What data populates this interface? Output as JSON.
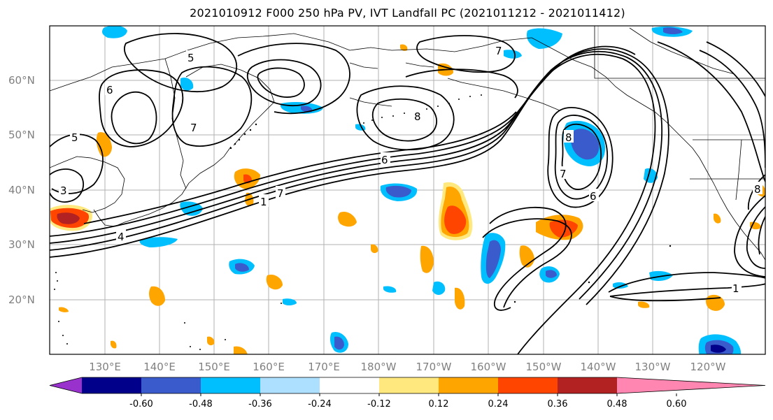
{
  "title": "2021010912 F000 250 hPa PV, IVT Landfall PC (2021011212 - 2021011412)",
  "lat_labels": [
    "60°N",
    "50°N",
    "40°N",
    "30°N",
    "20°N"
  ],
  "lon_labels": [
    "130°E",
    "140°E",
    "150°E",
    "160°E",
    "170°E",
    "180°W",
    "170°W",
    "160°W",
    "150°W",
    "140°W",
    "130°W",
    "120°W"
  ],
  "colorbar": {
    "colors": [
      "#9932CC",
      "#00008B",
      "#3A5BCB",
      "#00BFFF",
      "#ADDFFF",
      "#FFFFFF",
      "#FFE97F",
      "#FFA500",
      "#FF4500",
      "#B22222",
      "#FF86B0"
    ],
    "tick_labels": [
      "-0.60",
      "-0.48",
      "-0.36",
      "-0.24",
      "-0.12",
      "0.12",
      "0.24",
      "0.36",
      "0.48",
      "0.60"
    ]
  },
  "contour_labels": [
    "1",
    "1",
    "3",
    "4",
    "5",
    "5",
    "6",
    "6",
    "6",
    "7",
    "7",
    "7",
    "7",
    "8",
    "8",
    "8"
  ]
}
